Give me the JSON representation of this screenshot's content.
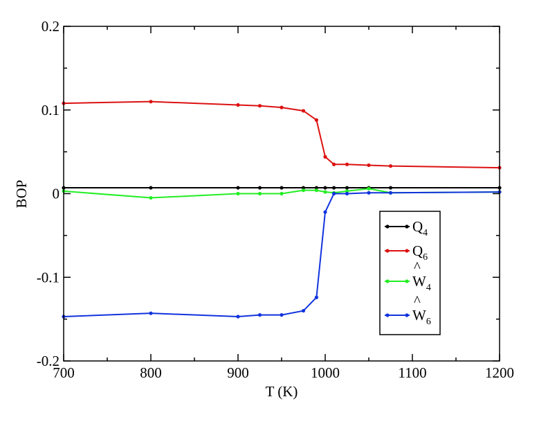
{
  "chart_data": {
    "type": "line",
    "title": "",
    "xlabel": "T (K)",
    "ylabel": "BOP",
    "xlim": [
      700,
      1200
    ],
    "ylim": [
      -0.2,
      0.2
    ],
    "x_ticks": [
      "700",
      "800",
      "900",
      "1000",
      "1100",
      "1200"
    ],
    "y_ticks": [
      "-0.2",
      "-0.1",
      "0",
      "0.1",
      "0.2"
    ],
    "grid": false,
    "legend_position": "center-right",
    "series": [
      {
        "name": "Q4",
        "legend_main": "Q",
        "legend_hat": "",
        "legend_sub": "4",
        "color": "#000000",
        "x": [
          700,
          800,
          900,
          925,
          950,
          975,
          990,
          1000,
          1010,
          1025,
          1050,
          1075,
          1200
        ],
        "y": [
          0.007,
          0.007,
          0.007,
          0.007,
          0.007,
          0.007,
          0.007,
          0.007,
          0.007,
          0.007,
          0.007,
          0.007,
          0.007
        ]
      },
      {
        "name": "Q6",
        "legend_main": "Q",
        "legend_hat": "",
        "legend_sub": "6",
        "color": "#dd1111",
        "x": [
          700,
          800,
          900,
          925,
          950,
          975,
          990,
          1000,
          1010,
          1025,
          1050,
          1075,
          1200
        ],
        "y": [
          0.108,
          0.11,
          0.106,
          0.105,
          0.103,
          0.099,
          0.088,
          0.044,
          0.035,
          0.035,
          0.034,
          0.033,
          0.031
        ]
      },
      {
        "name": "W4",
        "legend_main": "W",
        "legend_hat": "^",
        "legend_sub": "4",
        "color": "#22ee22",
        "x": [
          700,
          800,
          900,
          925,
          950,
          975,
          990,
          1000,
          1010,
          1025,
          1050,
          1075,
          1200
        ],
        "y": [
          0.003,
          -0.005,
          0.0,
          0.0,
          0.0,
          0.004,
          0.004,
          0.002,
          0.001,
          0.003,
          0.006,
          0.001,
          0.002
        ]
      },
      {
        "name": "W6",
        "legend_main": "W",
        "legend_hat": "^",
        "legend_sub": "6",
        "color": "#1133dd",
        "x": [
          700,
          800,
          900,
          925,
          950,
          975,
          990,
          1000,
          1010,
          1025,
          1050,
          1075,
          1200
        ],
        "y": [
          -0.147,
          -0.143,
          -0.147,
          -0.145,
          -0.145,
          -0.14,
          -0.124,
          -0.022,
          0.0,
          0.0,
          0.001,
          0.001,
          0.002
        ]
      }
    ]
  }
}
